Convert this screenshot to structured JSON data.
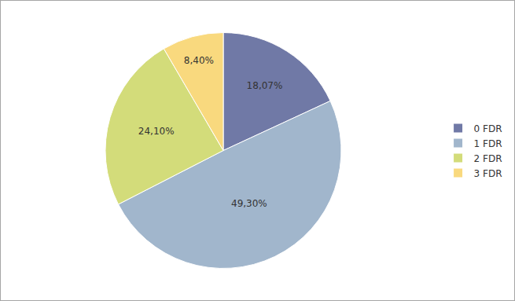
{
  "chart_data": {
    "type": "pie",
    "categories": [
      "0 FDR",
      "1 FDR",
      "2 FDR",
      "3 FDR"
    ],
    "values": [
      18.07,
      49.3,
      24.1,
      8.4
    ],
    "value_labels": [
      "18,07%",
      "49,30%",
      "24,10%",
      "8,40%"
    ],
    "colors": [
      "#7079a6",
      "#a1b6cc",
      "#d3dc7a",
      "#f9d97e"
    ],
    "data_labels": true,
    "legend": "right"
  }
}
